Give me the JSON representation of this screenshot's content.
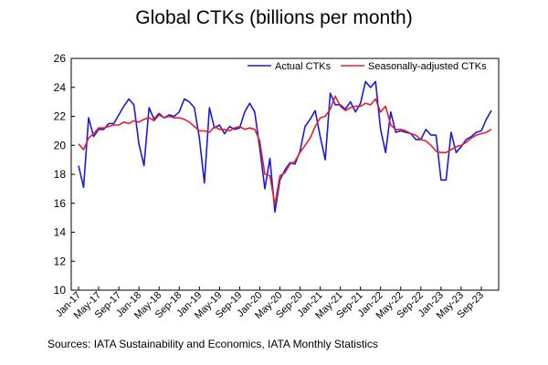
{
  "title": "Global CTKs (billions per month)",
  "source": "Sources: IATA Sustainability and Economics, IATA Monthly Statistics",
  "chart_data": {
    "type": "line",
    "title": "Global CTKs (billions per month)",
    "xlabel": "",
    "ylabel": "",
    "ylim": [
      10,
      26
    ],
    "yticks": [
      "10",
      "12",
      "14",
      "16",
      "18",
      "20",
      "22",
      "24",
      "26"
    ],
    "xticks": [
      "Jan-17",
      "May-17",
      "Sep-17",
      "Jan-18",
      "May-18",
      "Sep-18",
      "Jan-19",
      "May-19",
      "Sep-19",
      "Jan-20",
      "May-20",
      "Sep-20",
      "Jan-21",
      "May-21",
      "Sep-21",
      "Jan-22",
      "May-22",
      "Sep-22",
      "Jan-23",
      "May-23",
      "Sep-23"
    ],
    "grid": false,
    "legend": "top-right",
    "series": [
      {
        "name": "Actual CTKs",
        "color": "#1a1adc",
        "values": [
          18.6,
          17.1,
          21.9,
          20.6,
          21.1,
          21.1,
          21.5,
          21.5,
          22.1,
          22.7,
          23.2,
          22.8,
          20.1,
          18.6,
          22.6,
          21.8,
          22.2,
          21.9,
          22.1,
          22.0,
          22.3,
          23.2,
          23.0,
          22.6,
          20.5,
          17.4,
          22.6,
          21.2,
          21.4,
          20.8,
          21.3,
          21.1,
          21.2,
          22.3,
          22.9,
          22.3,
          19.8,
          17.0,
          19.1,
          15.4,
          17.6,
          18.3,
          18.8,
          18.7,
          19.6,
          21.3,
          21.8,
          22.4,
          20.6,
          19.0,
          23.6,
          22.8,
          22.8,
          22.5,
          23.0,
          22.3,
          22.9,
          24.4,
          24.0,
          24.4,
          21.1,
          19.5,
          22.3,
          20.9,
          21.0,
          20.9,
          20.8,
          20.4,
          20.4,
          21.1,
          20.7,
          20.7,
          17.6,
          17.6,
          20.9,
          19.5,
          19.9,
          20.4,
          20.6,
          20.9,
          21.0,
          21.8,
          22.4
        ]
      },
      {
        "name": "Seasonally-adjusted CTKs",
        "color": "#e8202a",
        "values": [
          20.1,
          19.7,
          20.5,
          20.8,
          21.2,
          21.2,
          21.3,
          21.4,
          21.4,
          21.6,
          21.5,
          21.7,
          21.6,
          21.8,
          21.9,
          21.7,
          22.1,
          21.9,
          22.0,
          21.9,
          21.9,
          21.8,
          21.6,
          21.3,
          21.0,
          21.0,
          20.9,
          21.3,
          21.1,
          21.1,
          21.0,
          21.2,
          21.3,
          21.1,
          21.2,
          21.1,
          20.3,
          18.0,
          17.9,
          15.9,
          17.9,
          18.1,
          18.7,
          18.9,
          19.5,
          20.0,
          20.5,
          21.3,
          21.9,
          22.0,
          22.5,
          23.4,
          22.7,
          22.4,
          22.6,
          22.7,
          22.7,
          22.9,
          22.8,
          23.2,
          22.3,
          22.7,
          21.4,
          21.1,
          21.1,
          21.0,
          20.8,
          20.7,
          20.4,
          20.3,
          20.0,
          19.6,
          19.5,
          19.5,
          19.7,
          19.9,
          20.0,
          20.2,
          20.5,
          20.7,
          20.8,
          20.9,
          21.1
        ]
      }
    ]
  }
}
